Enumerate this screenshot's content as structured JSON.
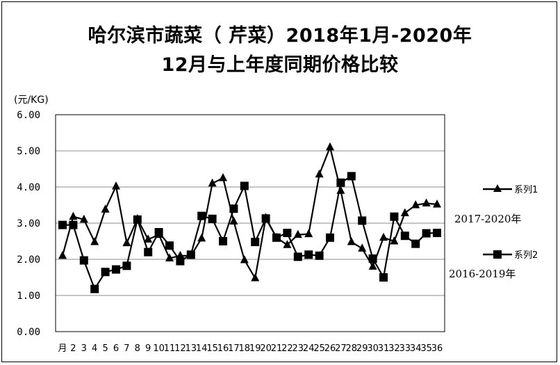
{
  "chart_data": {
    "type": "line",
    "title_line1": "哈尔滨市蔬菜（ 芹菜）2018年1月-2020年",
    "title_line2": "12月与上年度同期价格比较",
    "ylabel": "(元/KG)",
    "ylim": [
      0,
      6
    ],
    "yticks": [
      "0.00",
      "1.00",
      "2.00",
      "3.00",
      "4.00",
      "5.00",
      "6.00"
    ],
    "grid": true,
    "legend_position": "right",
    "x_ticks": [
      "月",
      "2",
      "3",
      "4",
      "5",
      "6",
      "7",
      "8",
      "9",
      "10",
      "11",
      "12",
      "13",
      "14",
      "15",
      "16",
      "17",
      "18",
      "19",
      "20",
      "21",
      "22",
      "23",
      "24",
      "25",
      "26",
      "27",
      "28",
      "29",
      "30",
      "31",
      "32",
      "33",
      "34",
      "35",
      "36"
    ],
    "x": [
      1,
      2,
      3,
      4,
      5,
      6,
      7,
      8,
      9,
      10,
      11,
      12,
      13,
      14,
      15,
      16,
      17,
      18,
      19,
      20,
      21,
      22,
      23,
      24,
      25,
      26,
      27,
      28,
      29,
      30,
      31,
      32,
      33,
      34,
      35,
      36
    ],
    "series": [
      {
        "name": "系列1",
        "note": "2017-2020年",
        "marker": "triangle",
        "values": [
          2.1,
          3.18,
          3.1,
          2.48,
          3.38,
          4.02,
          2.45,
          3.12,
          2.55,
          2.68,
          2.03,
          2.1,
          2.1,
          2.58,
          4.1,
          4.25,
          3.05,
          1.98,
          1.48,
          3.15,
          2.6,
          2.4,
          2.68,
          2.7,
          4.35,
          5.1,
          3.9,
          2.48,
          2.3,
          1.8,
          2.6,
          2.5,
          3.28,
          3.5,
          3.55,
          3.52
        ]
      },
      {
        "name": "系列2",
        "note": "2016-2019年",
        "marker": "square",
        "values": [
          2.95,
          2.95,
          1.97,
          1.18,
          1.65,
          1.72,
          1.82,
          3.1,
          2.2,
          2.75,
          2.38,
          1.95,
          2.13,
          3.2,
          3.12,
          2.5,
          3.4,
          4.03,
          2.48,
          3.13,
          2.6,
          2.73,
          2.07,
          2.13,
          2.1,
          2.6,
          4.12,
          4.3,
          3.07,
          2.02,
          1.5,
          3.18,
          2.65,
          2.43,
          2.72,
          2.73
        ]
      }
    ]
  }
}
